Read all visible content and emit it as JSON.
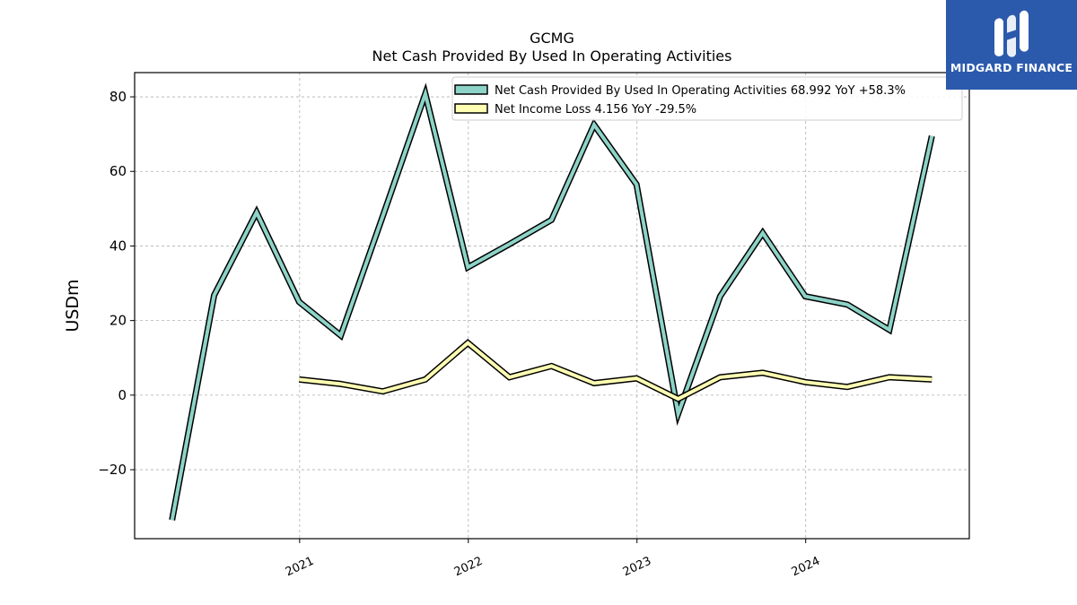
{
  "chart_data": {
    "type": "line",
    "title": "GCMG",
    "subtitle": "Net Cash Provided By Used In Operating Activities",
    "ylabel": "USDm",
    "xlabel": "",
    "ylim": [
      -38.5,
      86.5
    ],
    "xlim": [
      "2020-01-10",
      "2024-12-20"
    ],
    "yticks": [
      -20,
      0,
      20,
      40,
      60,
      80
    ],
    "ytick_labels": [
      "−20",
      "0",
      "20",
      "40",
      "60",
      "80"
    ],
    "xticks": [
      "2021-01-01",
      "2022-01-01",
      "2023-01-01",
      "2024-01-01"
    ],
    "xtick_labels": [
      "2021",
      "2022",
      "2023",
      "2024"
    ],
    "grid": true,
    "legend_position": "top-right",
    "series": [
      {
        "name": "Net Cash Provided By Used In Operating Activities",
        "legend_label": "Net Cash Provided By Used In Operating Activities  68.992 YoY +58.3%",
        "color": "#8dd3c7",
        "points": [
          [
            "2020-03-31",
            -33.5
          ],
          [
            "2020-06-30",
            26.8
          ],
          [
            "2020-09-30",
            49.0
          ],
          [
            "2020-12-31",
            25.0
          ],
          [
            "2021-03-31",
            16.0
          ],
          [
            "2021-06-30",
            48.0
          ],
          [
            "2021-09-30",
            80.8
          ],
          [
            "2021-12-31",
            34.3
          ],
          [
            "2022-03-31",
            40.5
          ],
          [
            "2022-06-30",
            47.0
          ],
          [
            "2022-09-30",
            72.5
          ],
          [
            "2022-12-31",
            56.5
          ],
          [
            "2023-03-31",
            -5.0
          ],
          [
            "2023-06-30",
            26.5
          ],
          [
            "2023-09-30",
            43.5
          ],
          [
            "2023-12-31",
            26.5
          ],
          [
            "2024-03-31",
            24.3
          ],
          [
            "2024-06-30",
            17.5
          ],
          [
            "2024-09-30",
            69.5
          ]
        ]
      },
      {
        "name": "Net Income Loss",
        "legend_label": "Net Income Loss  4.156 YoY -29.5%",
        "color": "#ffffb3",
        "points": [
          [
            "2020-12-31",
            4.2
          ],
          [
            "2021-03-31",
            3.0
          ],
          [
            "2021-06-30",
            1.0
          ],
          [
            "2021-09-30",
            4.2
          ],
          [
            "2021-12-31",
            14.0
          ],
          [
            "2022-03-31",
            4.8
          ],
          [
            "2022-06-30",
            7.8
          ],
          [
            "2022-09-30",
            3.2
          ],
          [
            "2022-12-31",
            4.5
          ],
          [
            "2023-03-31",
            -1.0
          ],
          [
            "2023-06-30",
            4.8
          ],
          [
            "2023-09-30",
            6.0
          ],
          [
            "2023-12-31",
            3.5
          ],
          [
            "2024-03-31",
            2.2
          ],
          [
            "2024-06-30",
            4.8
          ],
          [
            "2024-09-30",
            4.2
          ]
        ]
      }
    ]
  },
  "logo": {
    "brand": "MIDGARD FINANCE",
    "background_color": "#2b5aad",
    "icon": "midgard-monogram-icon"
  }
}
